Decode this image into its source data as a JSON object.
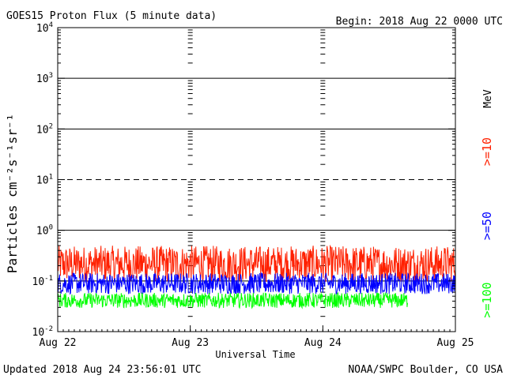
{
  "chart_data": {
    "type": "line",
    "title": "GOES15 Proton Flux (5 minute data)",
    "begin_label": "Begin: 2018 Aug 22 0000 UTC",
    "xlabel": "Universal Time",
    "ylabel": "Particles cm⁻²s⁻¹sr⁻¹",
    "yscale": "log",
    "ylim": [
      0.01,
      10000
    ],
    "xlim": [
      0,
      3
    ],
    "x_ticks": [
      {
        "x": 0,
        "label": "Aug 22"
      },
      {
        "x": 1,
        "label": "Aug 23"
      },
      {
        "x": 2,
        "label": "Aug 24"
      },
      {
        "x": 3,
        "label": "Aug 25"
      }
    ],
    "y_ticks": [
      {
        "base": "10",
        "exp": "4",
        "value": 10000
      },
      {
        "base": "10",
        "exp": "3",
        "value": 1000
      },
      {
        "base": "10",
        "exp": "2",
        "value": 100
      },
      {
        "base": "10",
        "exp": "1",
        "value": 10
      },
      {
        "base": "10",
        "exp": "0",
        "value": 1
      },
      {
        "base": "10",
        "exp": "-1",
        "value": 0.1
      },
      {
        "base": "10",
        "exp": "-2",
        "value": 0.01
      }
    ],
    "reference_lines": [
      {
        "value": 1000,
        "style": "solid"
      },
      {
        "value": 100,
        "style": "solid"
      },
      {
        "value": 10,
        "style": "dashed"
      },
      {
        "value": 1,
        "style": "solid"
      },
      {
        "value": 0.1,
        "style": "solid"
      }
    ],
    "unit_label": "MeV",
    "series": [
      {
        "name": ">=10",
        "color": "#ff2000",
        "baseline": 0.2,
        "spread": 0.12,
        "x_end": 3
      },
      {
        "name": ">=50",
        "color": "#0000ff",
        "baseline": 0.085,
        "spread": 0.07,
        "x_end": 3
      },
      {
        "name": ">=100",
        "color": "#00ff00",
        "baseline": 0.04,
        "spread": 0.05,
        "x_end": 2.64
      }
    ]
  },
  "footer": {
    "updated": "Updated 2018 Aug 24 23:56:01 UTC",
    "source": "NOAA/SWPC Boulder, CO USA"
  }
}
